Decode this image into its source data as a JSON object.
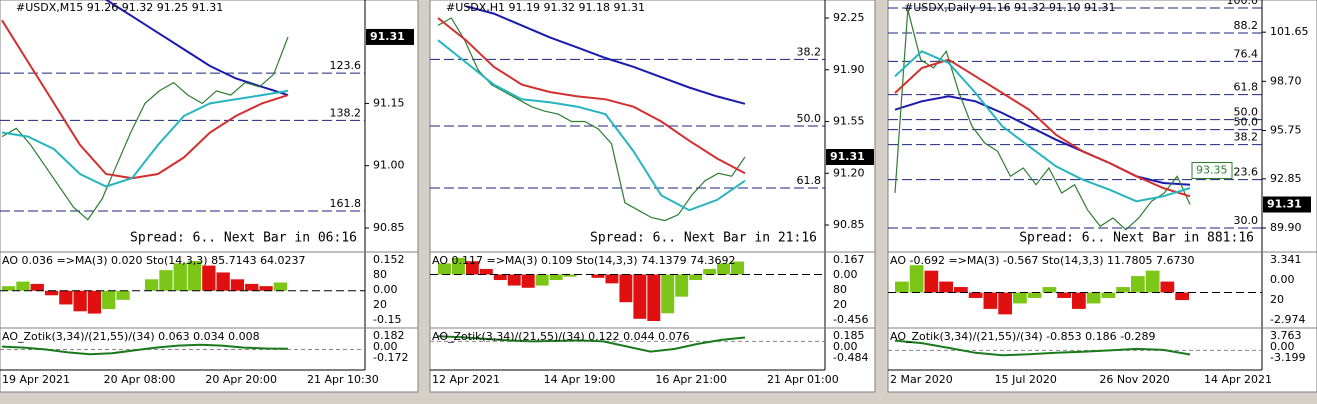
{
  "panels": [
    {
      "header": "#USDX,M15  91.26 91.32 91.25 91.31",
      "yticks": [
        91.15,
        {
          "value": 91.0,
          "label": "91.00"
        },
        90.85
      ],
      "ylim": [
        90.797,
        91.399
      ],
      "last": 91.31,
      "fib": [
        {
          "level": "123.6",
          "price": 91.223
        },
        {
          "level": "138.2",
          "price": 91.109
        },
        {
          "level": "161.8",
          "price": 90.891
        }
      ],
      "spread": "Spread: 6.. Next Bar in 06:16",
      "close": [
        91.07,
        91.09,
        91.05,
        91.0,
        90.95,
        90.9,
        90.87,
        90.92,
        91.0,
        91.08,
        91.15,
        91.18,
        91.2,
        91.17,
        91.15,
        91.18,
        91.17,
        91.2,
        91.19,
        91.22,
        91.31
      ],
      "ma_red": [
        91.35,
        91.25,
        91.15,
        91.05,
        90.98,
        90.97,
        90.98,
        91.02,
        91.08,
        91.12,
        91.15,
        91.17
      ],
      "ma_teal": [
        91.08,
        91.07,
        91.04,
        90.98,
        90.95,
        90.97,
        91.05,
        91.12,
        91.15,
        91.16,
        91.17,
        91.18
      ],
      "ma_blue": [
        null,
        null,
        null,
        null,
        91.4,
        91.36,
        91.32,
        91.28,
        91.24,
        91.21,
        91.19,
        91.17
      ],
      "ao": {
        "label": "AO 0.036 =>MA(3) 0.020 Sto(14,3,3) 85.7143 64.0237",
        "ticks": [
          "0.152",
          "80",
          "0.00",
          "20",
          "-0.15"
        ],
        "ylim": [
          -0.15,
          0.152
        ],
        "values": [
          0.02,
          0.04,
          0.03,
          -0.02,
          -0.06,
          -0.09,
          -0.1,
          -0.08,
          -0.04,
          0.0,
          0.05,
          0.09,
          0.12,
          0.13,
          0.11,
          0.08,
          0.05,
          0.03,
          0.02,
          0.036
        ]
      },
      "zotik": {
        "label": "AO_Zotik(3,34)/(21,55)/(34) 0.063 0.034 0.008",
        "ticks": [
          "0.182",
          "0.00",
          "-0.172"
        ],
        "ylim": [
          -0.172,
          0.182
        ],
        "values": [
          0.03,
          0.02,
          0.0,
          -0.03,
          -0.05,
          -0.04,
          -0.01,
          0.02,
          0.04,
          0.05,
          0.04,
          0.02,
          0.01,
          0.008
        ]
      },
      "xlabels": [
        "19 Apr 2021",
        "20 Apr 08:00",
        "20 Apr 20:00",
        "21 Apr 10:30"
      ]
    },
    {
      "header": "#USDX,H1  91.19 91.32 91.18 91.31",
      "yticks": [
        92.25,
        {
          "value": 91.9,
          "label": "91.90"
        },
        91.55,
        {
          "value": 91.2,
          "label": "91.20"
        },
        90.85
      ],
      "ylim": [
        90.681,
        92.372
      ],
      "last": 91.31,
      "fib": [
        {
          "level": "38.2",
          "price": 91.97
        },
        {
          "level": "50.0",
          "price": 91.52
        },
        {
          "level": "61.8",
          "price": 91.1
        }
      ],
      "spread": "Spread: 6.. Next Bar in 21:16",
      "close": [
        92.2,
        92.25,
        92.1,
        91.9,
        91.8,
        91.75,
        91.7,
        91.65,
        91.62,
        91.6,
        91.55,
        91.55,
        91.5,
        91.4,
        91.0,
        90.95,
        90.9,
        90.88,
        90.92,
        91.05,
        91.15,
        91.2,
        91.18,
        91.31
      ],
      "ma_red": [
        92.25,
        92.1,
        91.92,
        91.8,
        91.75,
        91.72,
        91.7,
        91.65,
        91.55,
        91.42,
        91.3,
        91.2
      ],
      "ma_teal": [
        92.1,
        91.95,
        91.8,
        91.7,
        91.68,
        91.65,
        91.6,
        91.35,
        91.05,
        90.95,
        91.02,
        91.15
      ],
      "ma_blue": [
        null,
        92.33,
        92.28,
        92.2,
        92.12,
        92.05,
        91.98,
        91.92,
        91.85,
        91.78,
        91.72,
        91.67
      ],
      "ao": {
        "label": "AO 0.117 =>MA(3) 0.109 Sto(14,3,3) 74.1379 74.3692",
        "ticks": [
          "0.167",
          "0.00",
          "80",
          "20",
          "-0.456"
        ],
        "ylim": [
          -0.456,
          0.167
        ],
        "values": [
          0.1,
          0.15,
          0.12,
          0.05,
          -0.05,
          -0.1,
          -0.12,
          -0.1,
          -0.05,
          -0.02,
          0.0,
          -0.03,
          -0.08,
          -0.25,
          -0.4,
          -0.42,
          -0.35,
          -0.2,
          -0.05,
          0.05,
          0.1,
          0.117
        ]
      },
      "zotik": {
        "label": "AO_Zotik(3,34)/(21,55)/(34) 0.122 0.044 0.076",
        "ticks": [
          "0.185",
          "0.00",
          "-0.484"
        ],
        "ylim": [
          -0.484,
          0.185
        ],
        "values": [
          0.1,
          0.08,
          0.05,
          0.02,
          0.0,
          0.01,
          0.02,
          0.0,
          -0.1,
          -0.2,
          -0.15,
          -0.05,
          0.03,
          0.076
        ]
      },
      "xlabels": [
        "12 Apr 2021",
        "14 Apr 19:00",
        "16 Apr 21:00",
        "21 Apr 01:00"
      ]
    },
    {
      "header": "#USDX,Daily  91.16 91.32 91.10 91.31",
      "yticks": [
        101.65,
        {
          "value": 98.7,
          "label": "98.70"
        },
        95.75,
        92.85,
        {
          "value": 89.9,
          "label": "89.90"
        }
      ],
      "ylim": [
        88.58,
        103.58
      ],
      "last": 91.31,
      "marker": 93.35,
      "fib": [
        {
          "level": "100.0",
          "price": 103.1
        },
        {
          "level": "88.2",
          "price": 101.6
        },
        {
          "level": "76.4",
          "price": 99.9
        },
        {
          "level": "61.8",
          "price": 97.9
        },
        {
          "level": "50.0",
          "price": 96.4
        },
        {
          "level": "50.0",
          "price": 95.8
        },
        {
          "level": "38.2",
          "price": 94.9
        },
        {
          "level": "23.6",
          "price": 92.8
        },
        {
          "level": "30.0",
          "price": 89.9
        }
      ],
      "spread": "Spread: 6.. Next Bar in 881:16",
      "close": [
        92.0,
        103.0,
        100.0,
        99.5,
        100.5,
        98.0,
        96.0,
        95.0,
        94.5,
        93.0,
        93.5,
        92.5,
        93.5,
        92.0,
        92.5,
        91.0,
        90.0,
        90.5,
        89.8,
        90.5,
        91.5,
        92.0,
        93.0,
        91.31
      ],
      "ma_red": [
        98,
        99.5,
        100,
        99,
        98,
        97,
        95.5,
        94.5,
        93.8,
        93.0,
        92.3,
        91.8
      ],
      "ma_teal": [
        99,
        100.5,
        99.8,
        98.0,
        96.0,
        94.8,
        93.6,
        92.8,
        92.2,
        91.5,
        91.8,
        92.3
      ],
      "ma_blue": [
        97.0,
        97.5,
        97.8,
        97.5,
        96.8,
        96.0,
        95.2,
        94.5,
        93.8,
        93.0,
        92.6,
        92.5
      ],
      "ao": {
        "label": "AO -0.692 =>MA(3) -0.567 Sto(14,3,3) 11.7805 7.6730",
        "ticks": [
          "3.341",
          "0.00",
          "20",
          "-2.974"
        ],
        "ylim": [
          -2.974,
          3.341
        ],
        "values": [
          1,
          2.5,
          2,
          1,
          0.5,
          -0.5,
          -1.5,
          -2,
          -1,
          -0.5,
          0.5,
          -0.5,
          -1.5,
          -1,
          -0.5,
          0.5,
          1.5,
          2,
          1,
          -0.692
        ]
      },
      "zotik": {
        "label": "AO_Zotik(3,34)/(21,55)/(34) -0.853 0.186 -0.289",
        "ticks": [
          "3.763",
          "0.00",
          "-3.199"
        ],
        "ylim": [
          -3.199,
          3.763
        ],
        "values": [
          2,
          1.5,
          0.5,
          -0.5,
          -1,
          -0.8,
          -0.5,
          -0.3,
          0,
          0.3,
          0.1,
          -0.853
        ]
      },
      "xlabels": [
        "2 Mar 2020",
        "15 Jul 2020",
        "26 Nov 2020",
        "14 Apr 2021"
      ]
    }
  ]
}
